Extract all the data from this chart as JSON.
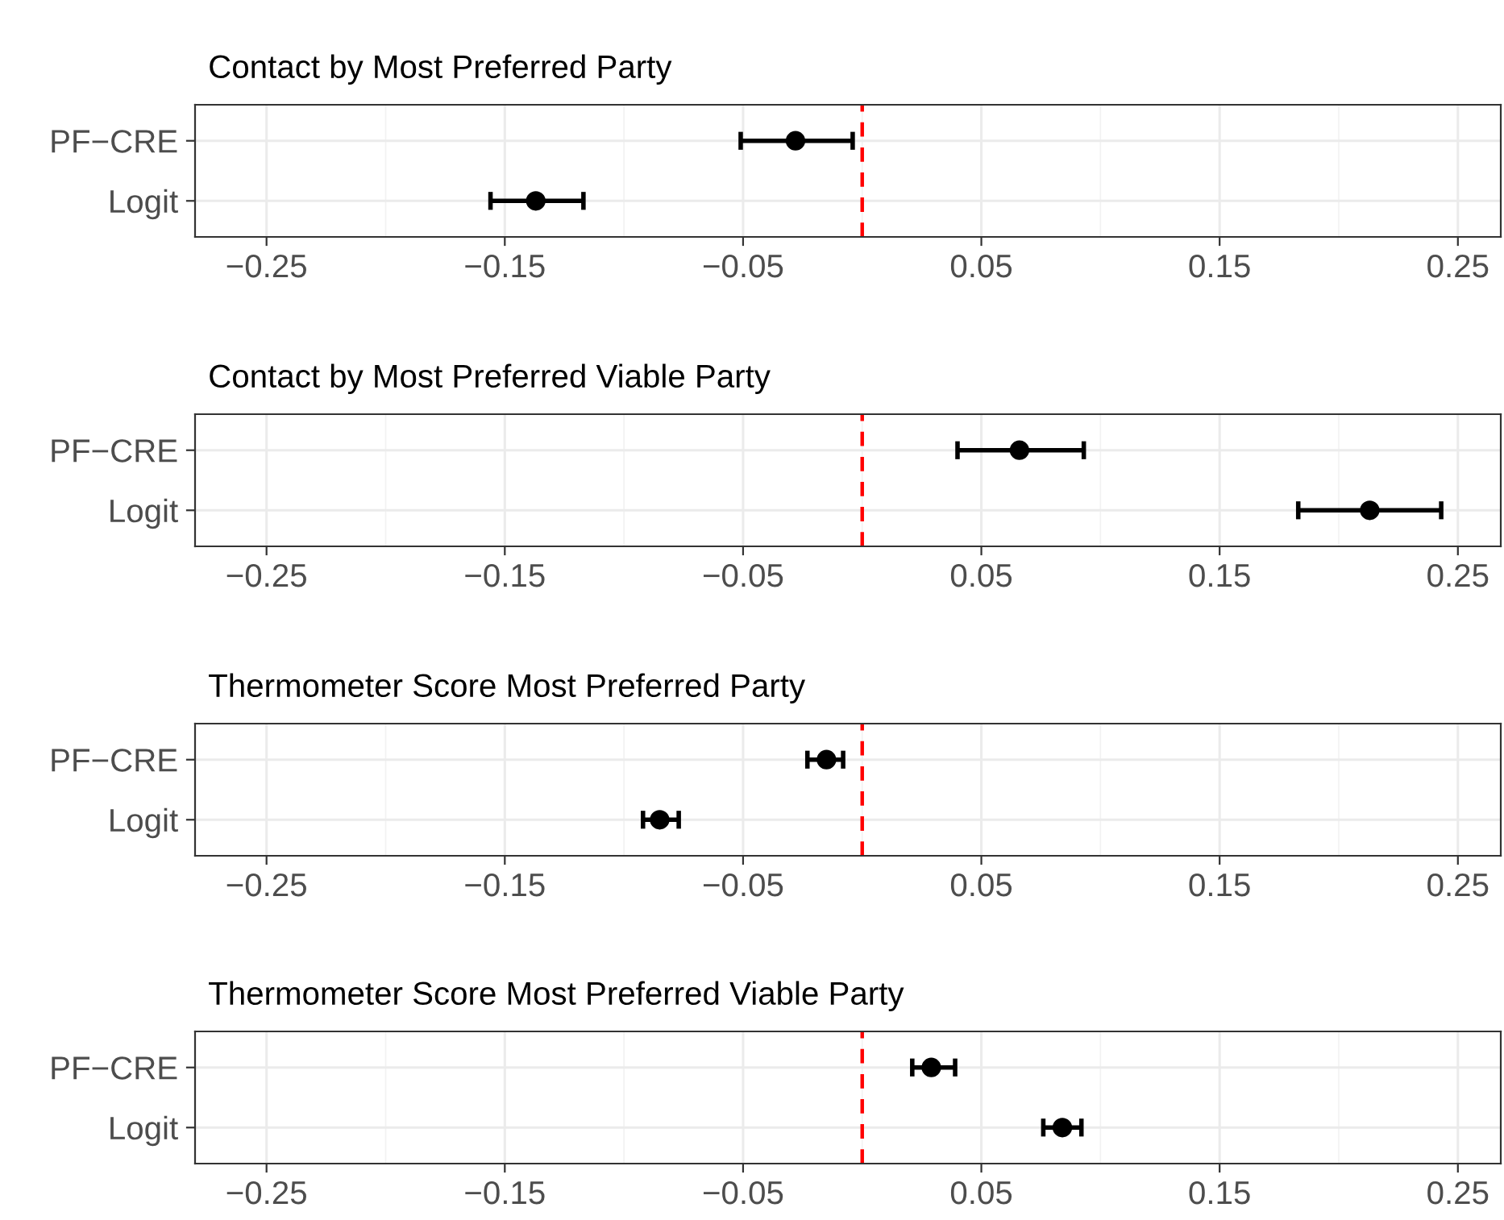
{
  "chart_data": [
    {
      "type": "scatter",
      "orientation": "horizontal",
      "title": "Contact by Most Preferred Party",
      "categories": [
        "PF−CRE",
        "Logit"
      ],
      "values": [
        -0.028,
        -0.137
      ],
      "errors": [
        [
          -0.051,
          -0.004
        ],
        [
          -0.156,
          -0.117
        ]
      ],
      "color": "#000000",
      "marker": "circle",
      "xlim": [
        -0.28,
        0.268
      ],
      "xticks": [
        {
          "value": -0.25,
          "label": "−0.25"
        },
        {
          "value": -0.15,
          "label": "−0.15"
        },
        {
          "value": -0.05,
          "label": "−0.05"
        },
        0.05,
        0.15,
        0.25
      ],
      "ref_lines": [
        {
          "axis": "x",
          "value": 0,
          "color": "#ff0000",
          "line_style": "dashed"
        }
      ],
      "grid": true
    },
    {
      "type": "scatter",
      "orientation": "horizontal",
      "title": "Contact by Most Preferred Viable Party",
      "categories": [
        "PF−CRE",
        "Logit"
      ],
      "values": [
        0.066,
        0.213
      ],
      "errors": [
        [
          0.04,
          0.093
        ],
        [
          0.183,
          0.243
        ]
      ],
      "color": "#000000",
      "marker": "circle",
      "xlim": [
        -0.28,
        0.268
      ],
      "xticks": [
        {
          "value": -0.25,
          "label": "−0.25"
        },
        {
          "value": -0.15,
          "label": "−0.15"
        },
        {
          "value": -0.05,
          "label": "−0.05"
        },
        0.05,
        0.15,
        0.25
      ],
      "ref_lines": [
        {
          "axis": "x",
          "value": 0,
          "color": "#ff0000",
          "line_style": "dashed"
        }
      ],
      "grid": true
    },
    {
      "type": "scatter",
      "orientation": "horizontal",
      "title": "Thermometer Score Most Preferred Party",
      "categories": [
        "PF−CRE",
        "Logit"
      ],
      "values": [
        -0.015,
        -0.085
      ],
      "errors": [
        [
          -0.023,
          -0.008
        ],
        [
          -0.092,
          -0.077
        ]
      ],
      "color": "#000000",
      "marker": "circle",
      "xlim": [
        -0.28,
        0.268
      ],
      "xticks": [
        {
          "value": -0.25,
          "label": "−0.25"
        },
        {
          "value": -0.15,
          "label": "−0.15"
        },
        {
          "value": -0.05,
          "label": "−0.05"
        },
        0.05,
        0.15,
        0.25
      ],
      "ref_lines": [
        {
          "axis": "x",
          "value": 0,
          "color": "#ff0000",
          "line_style": "dashed"
        }
      ],
      "grid": true
    },
    {
      "type": "scatter",
      "orientation": "horizontal",
      "title": "Thermometer Score Most Preferred Viable Party",
      "categories": [
        "PF−CRE",
        "Logit"
      ],
      "values": [
        0.029,
        0.084
      ],
      "errors": [
        [
          0.021,
          0.039
        ],
        [
          0.076,
          0.092
        ]
      ],
      "color": "#000000",
      "marker": "circle",
      "xlim": [
        -0.28,
        0.268
      ],
      "xticks": [
        {
          "value": -0.25,
          "label": "−0.25"
        },
        {
          "value": -0.15,
          "label": "−0.15"
        },
        {
          "value": -0.05,
          "label": "−0.05"
        },
        0.05,
        0.15,
        0.25
      ],
      "ref_lines": [
        {
          "axis": "x",
          "value": 0,
          "color": "#ff0000",
          "line_style": "dashed"
        }
      ],
      "grid": true
    }
  ]
}
